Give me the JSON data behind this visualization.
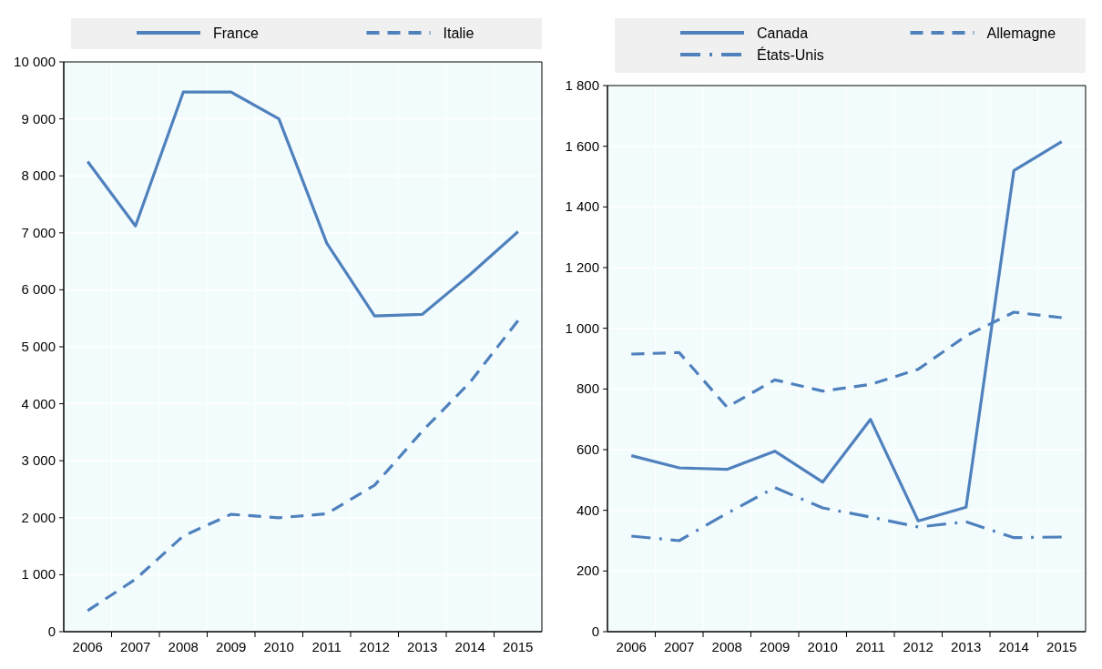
{
  "chart_data": [
    {
      "type": "line",
      "categories": [
        "2006",
        "2007",
        "2008",
        "2009",
        "2010",
        "2011",
        "2012",
        "2013",
        "2014",
        "2015"
      ],
      "ylim": [
        0,
        10000
      ],
      "yticks": [
        {
          "value": 0,
          "label": "0"
        },
        {
          "value": 1000,
          "label": "1 000"
        },
        {
          "value": 2000,
          "label": "2 000"
        },
        {
          "value": 3000,
          "label": "3 000"
        },
        {
          "value": 4000,
          "label": "4 000"
        },
        {
          "value": 5000,
          "label": "5 000"
        },
        {
          "value": 6000,
          "label": "6 000"
        },
        {
          "value": 7000,
          "label": "7 000"
        },
        {
          "value": 8000,
          "label": "8 000"
        },
        {
          "value": 9000,
          "label": "9 000"
        },
        {
          "value": 10000,
          "label": "10 000"
        }
      ],
      "grid": "y",
      "legend": "top",
      "series": [
        {
          "name": "France",
          "color": "#4f81bd",
          "line_style": "solid",
          "values": [
            8250,
            7120,
            9470,
            9470,
            9000,
            6820,
            5540,
            5570,
            6270,
            7020
          ]
        },
        {
          "name": "Italie",
          "color": "#4f81bd",
          "line_style": "dashed",
          "values": [
            370,
            920,
            1680,
            2060,
            2000,
            2070,
            2570,
            3520,
            4380,
            5460
          ]
        }
      ]
    },
    {
      "type": "line",
      "categories": [
        "2006",
        "2007",
        "2008",
        "2009",
        "2010",
        "2011",
        "2012",
        "2013",
        "2014",
        "2015"
      ],
      "ylim": [
        0,
        1800
      ],
      "yticks": [
        0,
        200,
        400,
        600,
        800,
        {
          "value": 1000,
          "label": "1 000"
        },
        {
          "value": 1200,
          "label": "1 200"
        },
        {
          "value": 1400,
          "label": "1 400"
        },
        {
          "value": 1600,
          "label": "1 600"
        },
        {
          "value": 1800,
          "label": "1 800"
        }
      ],
      "grid": "y",
      "legend": "top",
      "series": [
        {
          "name": "Canada",
          "color": "#4f81bd",
          "line_style": "solid",
          "values": [
            580,
            540,
            535,
            595,
            493,
            700,
            365,
            410,
            1520,
            1615
          ]
        },
        {
          "name": "Allemagne",
          "color": "#4f81bd",
          "line_style": "dashed",
          "values": [
            915,
            920,
            740,
            830,
            793,
            815,
            865,
            975,
            1053,
            1035
          ]
        },
        {
          "name": "États-Unis",
          "color": "#4f81bd",
          "line_style": "dashdot",
          "values": [
            315,
            300,
            390,
            475,
            408,
            378,
            345,
            362,
            310,
            312
          ]
        }
      ]
    }
  ]
}
